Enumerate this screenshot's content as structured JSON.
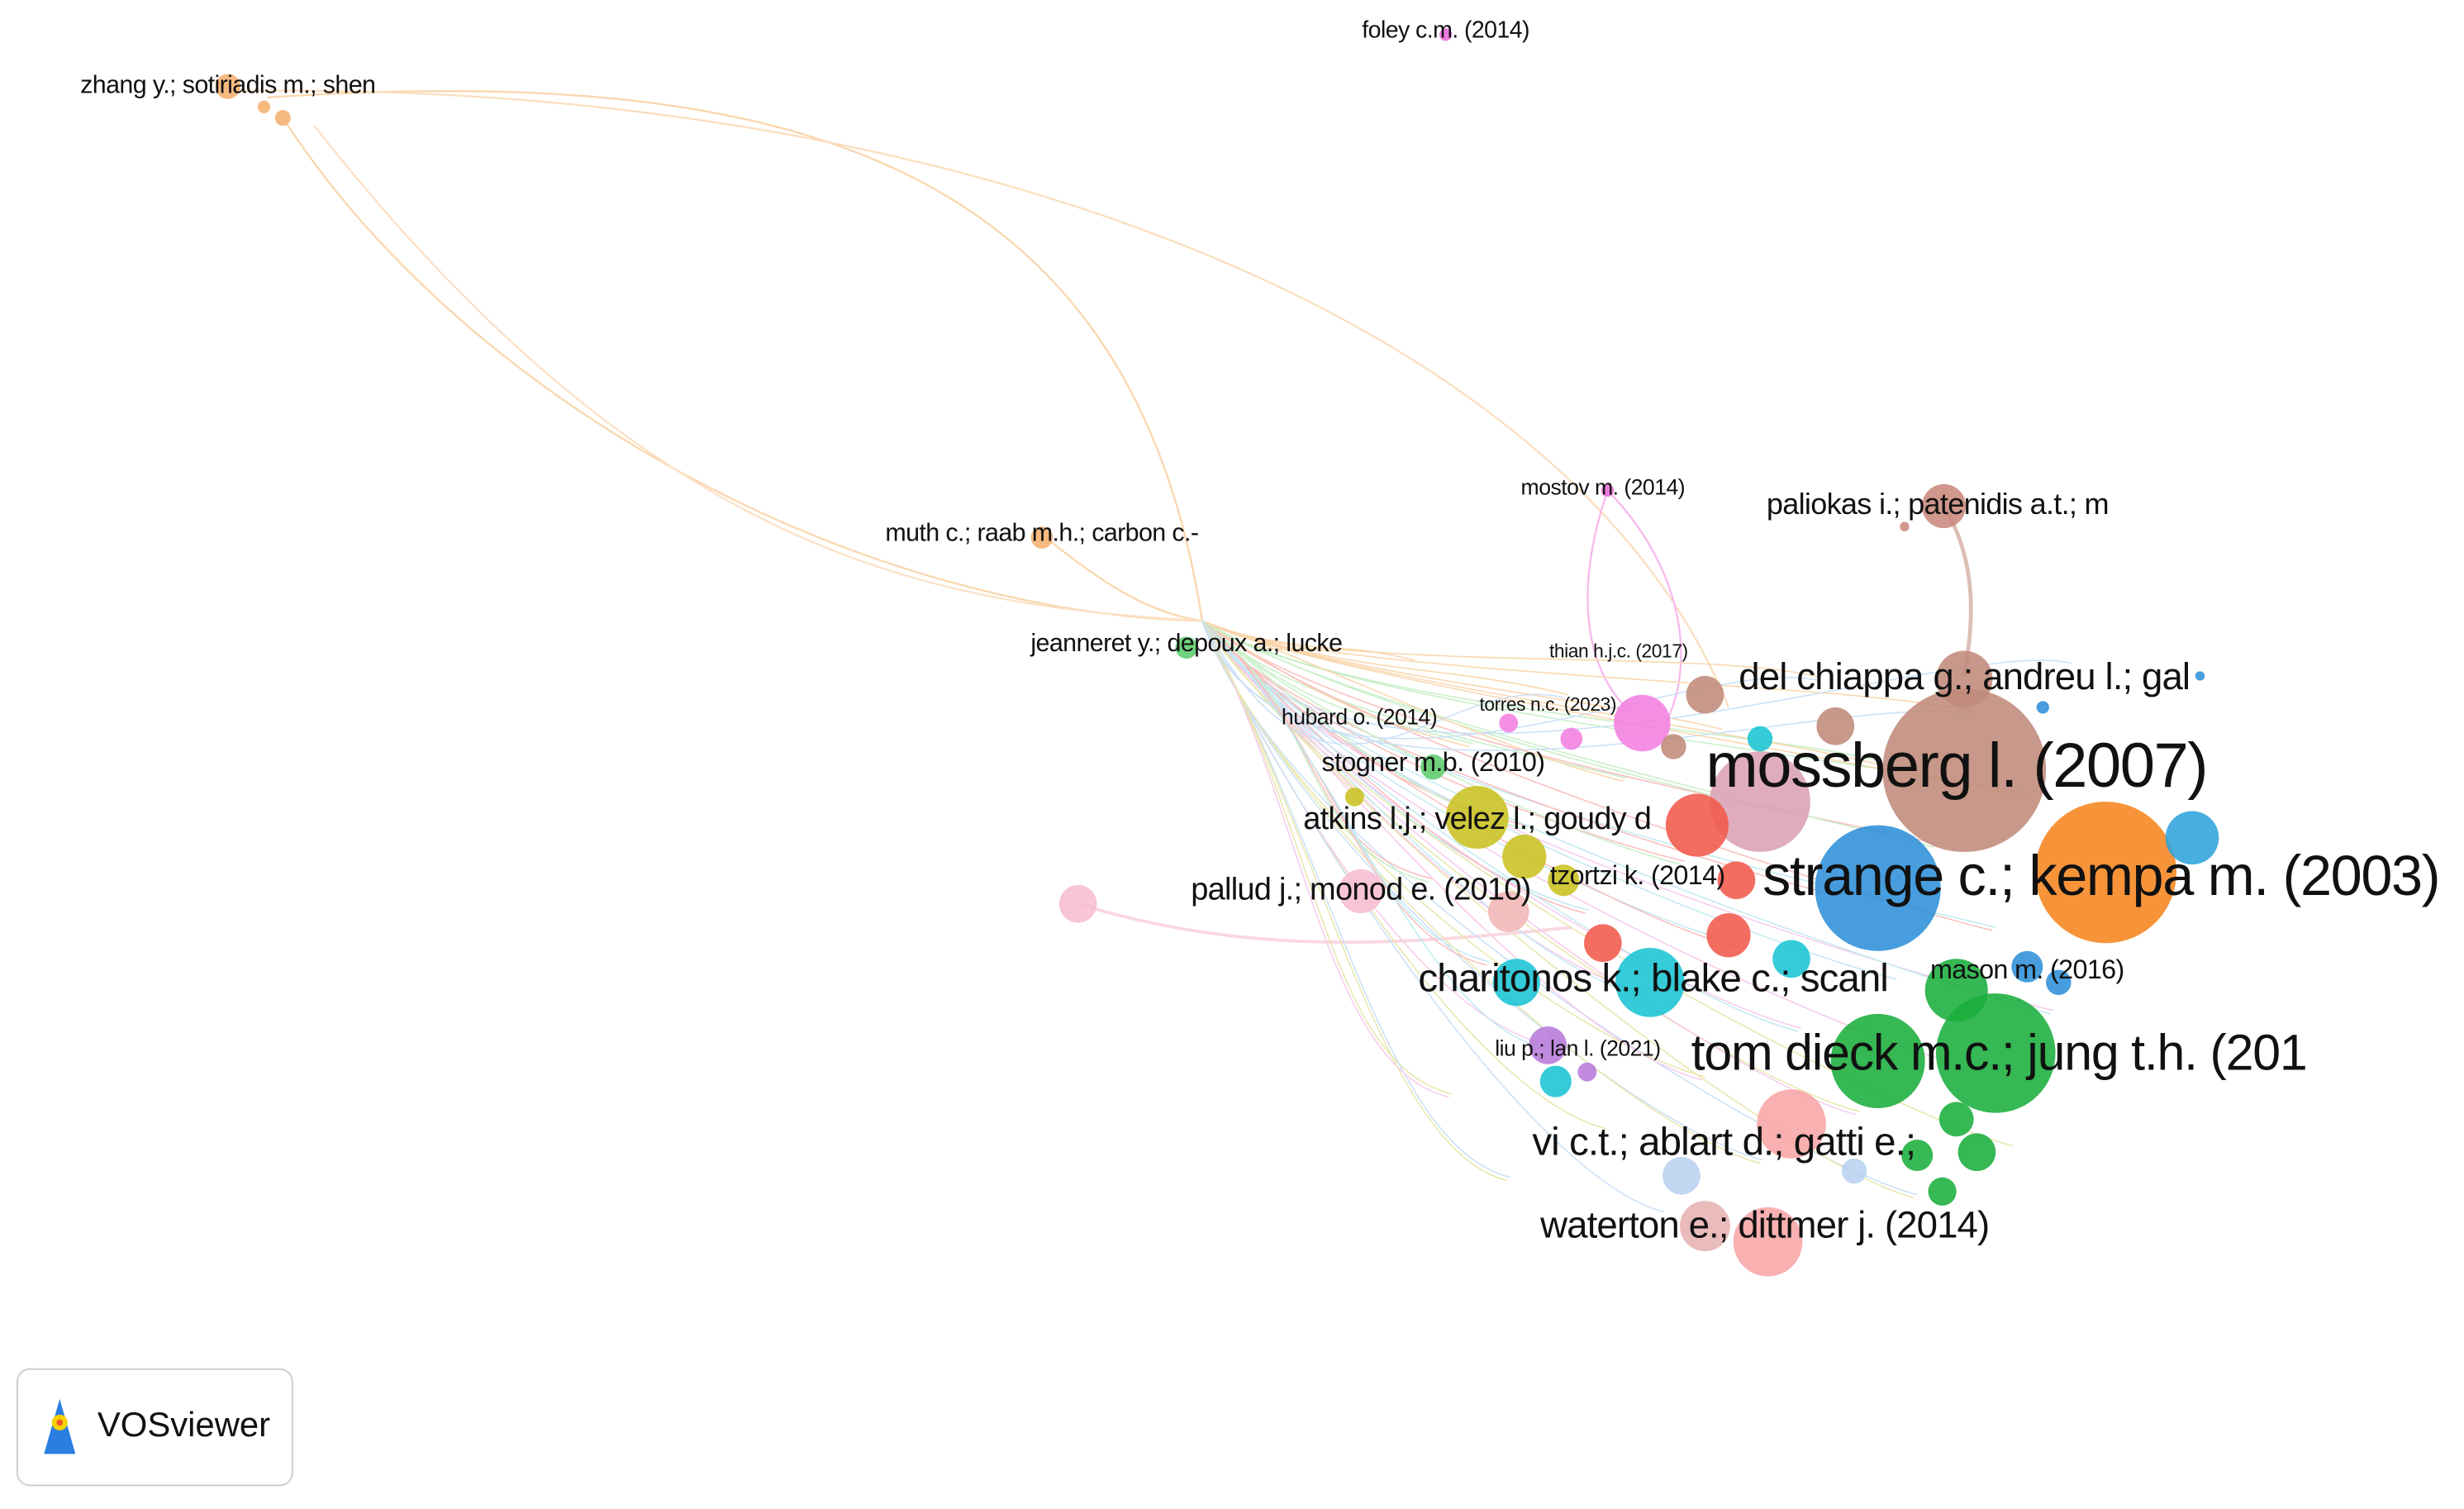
{
  "nodes": [
    {
      "label": "foley c.m. (2014)"
    },
    {
      "label": "zhang y.; sotiriadis m.; shen"
    },
    {
      "label": "mostov m. (2014)"
    },
    {
      "label": "paliokas i.; patenidis a.t.; m"
    },
    {
      "label": "muth c.; raab m.h.; carbon c.-"
    },
    {
      "label": "jeanneret y.; depoux a.; lucke"
    },
    {
      "label": "thian h.j.c. (2017)"
    },
    {
      "label": "del chiappa g.; andreu l.; gal"
    },
    {
      "label": "torres n.c. (2023)"
    },
    {
      "label": "hubard o. (2014)"
    },
    {
      "label": "mossberg l. (2007)"
    },
    {
      "label": "stogner m.b. (2010)"
    },
    {
      "label": "atkins l.j.; velez l.; goudy d"
    },
    {
      "label": "tzortzi k. (2014)"
    },
    {
      "label": "strange c.; kempa m. (2003)"
    },
    {
      "label": "pallud j.; monod e. (2010)"
    },
    {
      "label": "charitonos k.; blake c.; scanl"
    },
    {
      "label": "mason m. (2016)"
    },
    {
      "label": "tom dieck m.c.; jung t.h. (201"
    },
    {
      "label": "liu p.; lan l. (2021)"
    },
    {
      "label": "vi c.t.; ablart d.; gatti e.;"
    },
    {
      "label": "waterton e.; dittmer j. (2014)"
    }
  ],
  "logo": {
    "text": "VOSviewer"
  }
}
